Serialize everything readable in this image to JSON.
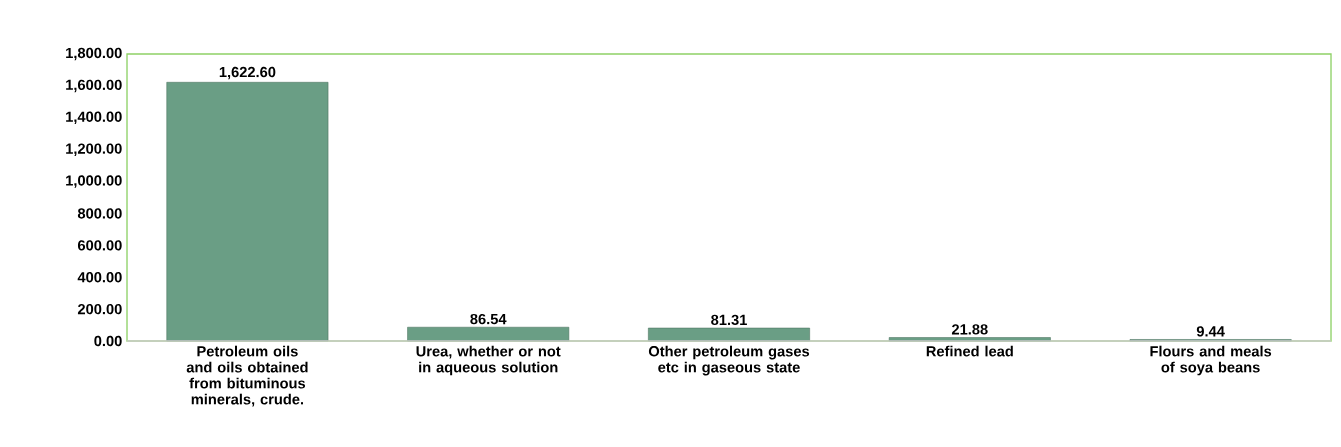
{
  "chart_data": {
    "type": "bar",
    "categories": [
      "Petroleum oils and oils obtained from bituminous minerals, crude.",
      "Urea, whether or not in aqueous solution",
      "Other petroleum gases etc in gaseous state",
      "Refined lead",
      "Flours and meals of soya beans"
    ],
    "values": [
      1622.6,
      86.54,
      81.31,
      21.88,
      9.44
    ],
    "value_labels": [
      "1,622.60",
      "86.54",
      "81.31",
      "21.88",
      "9.44"
    ],
    "color": "#6a9e85",
    "ylim": [
      0,
      1800
    ],
    "yticks": [
      {
        "value": 0,
        "label": "0.00"
      },
      {
        "value": 200,
        "label": "200.00"
      },
      {
        "value": 400,
        "label": "400.00"
      },
      {
        "value": 600,
        "label": "600.00"
      },
      {
        "value": 800,
        "label": "800.00"
      },
      {
        "value": 1000,
        "label": "1,000.00"
      },
      {
        "value": 1200,
        "label": "1,200.00"
      },
      {
        "value": 1400,
        "label": "1,400.00"
      },
      {
        "value": 1600,
        "label": "1,600.00"
      },
      {
        "value": 1800,
        "label": "1,800.00"
      }
    ],
    "grid": false
  }
}
